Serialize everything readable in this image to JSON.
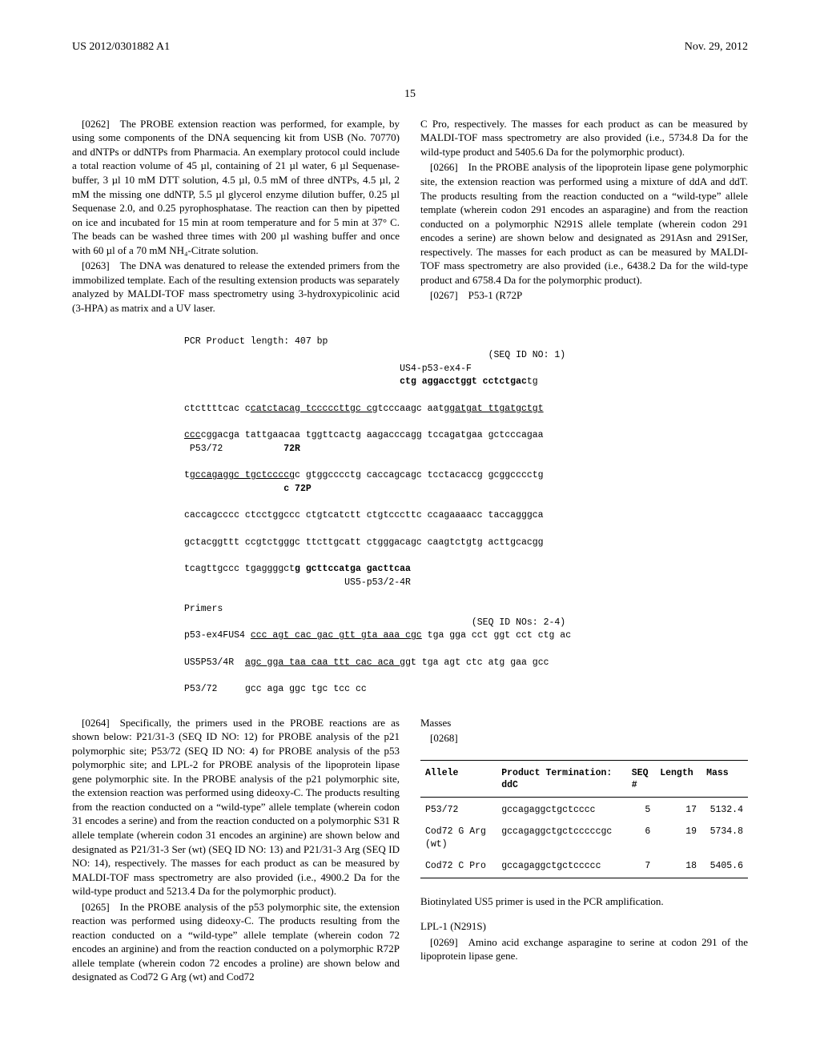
{
  "header": {
    "left": "US 2012/0301882 A1",
    "right": "Nov. 29, 2012"
  },
  "page_number": "15",
  "left_column": {
    "p0262": "[0262] The PROBE extension reaction was performed, for example, by using some components of the DNA sequencing kit from USB (No. 70770) and dNTPs or ddNTPs from Pharmacia. An exemplary protocol could include a total reaction volume of 45 µl, containing of 21 µl water, 6 µl Sequenase-buffer, 3 µl 10 mM DTT solution, 4.5 µl, 0.5 mM of three dNTPs, 4.5 µl, 2 mM the missing one ddNTP, 5.5 µl glycerol enzyme dilution buffer, 0.25 µl Sequenase 2.0, and 0.25 pyrophosphatase. The reaction can then by pipetted on ice and incubated for 15 min at room temperature and for 5 min at 37° C. The beads can be washed three times with 200 µl washing buffer and once with 60 µl of a 70 mM NH₄-Citrate solution.",
    "p0263": "[0263] The DNA was denatured to release the extended primers from the immobilized template. Each of the resulting extension products was separately analyzed by MALDI-TOF mass spectrometry using 3-hydroxypicolinic acid (3-HPA) as matrix and a UV laser.",
    "p0264": "[0264] Specifically, the primers used in the PROBE reactions are as shown below: P21/31-3 (SEQ ID NO: 12) for PROBE analysis of the p21 polymorphic site; P53/72 (SEQ ID NO: 4) for PROBE analysis of the p53 polymorphic site; and LPL-2 for PROBE analysis of the lipoprotein lipase gene polymorphic site. In the PROBE analysis of the p21 polymorphic site, the extension reaction was performed using dideoxy-C. The products resulting from the reaction conducted on a “wild-type” allele template (wherein codon 31 encodes a serine) and from the reaction conducted on a polymorphic S31 R allele template (wherein codon 31 encodes an arginine) are shown below and designated as P21/31-3 Ser (wt) (SEQ ID NO: 13) and P21/31-3 Arg (SEQ ID NO: 14), respectively. The masses for each product as can be measured by MALDI-TOF mass spectrometry are also provided (i.e., 4900.2 Da for the wild-type product and 5213.4 Da for the polymorphic product).",
    "p0265": "[0265] In the PROBE analysis of the p53 polymorphic site, the extension reaction was performed using dideoxy-C. The products resulting from the reaction conducted on a “wild-type” allele template (wherein codon 72 encodes an arginine) and from the reaction conducted on a polymorphic R72P allele template (wherein codon 72 encodes a proline) are shown below and designated as Cod72 G Arg (wt) and Cod72"
  },
  "right_column": {
    "cont_top": "C Pro, respectively. The masses for each product as can be measured by MALDI-TOF mass spectrometry are also provided (i.e., 5734.8 Da for the wild-type product and 5405.6 Da for the polymorphic product).",
    "p0266": "[0266] In the PROBE analysis of the lipoprotein lipase gene polymorphic site, the extension reaction was performed using a mixture of ddA and ddT. The products resulting from the reaction conducted on a “wild-type” allele template (wherein codon 291 encodes an asparagine) and from the reaction conducted on a polymorphic N291S allele template (wherein codon 291 encodes a serine) are shown below and designated as 291Asn and 291Ser, respectively. The masses for each product as can be measured by MALDI-TOF mass spectrometry are also provided (i.e., 6438.2 Da for the wild-type product and 6758.4 Da for the polymorphic product).",
    "p0267": "[0267] P53-1 (R72P",
    "masses_label": "Masses",
    "p0268": "[0268]",
    "biotin_note": "Biotinylated US5 primer is used in the PCR amplification.",
    "lpl_heading": "LPL-1 (N291S)",
    "p0269": "[0269] Amino acid exchange asparagine to serine at codon 291 of the lipoprotein lipase gene."
  },
  "sequence_block": {
    "title": "PCR Product length: 407 bp",
    "seq_id_1": "(SEQ ID NO: 1)",
    "us4_label": "US4-p53-ex4-F",
    "us4_seq_bold": "ctg aggacctggt cctctgac",
    "us4_tail": "tg",
    "line1_a": "ctcttttcac c",
    "line1_ul": "catctacag tcccccttgc cg",
    "line1_b": "tcccaagc aat",
    "line1_ul2": "ggatgat ttgatgctgt",
    "line2_ul": "ccc",
    "line2_b": "cggacga tattgaacaa tggttcactg aagacccagg tccagatgaa gctcccagaa",
    "p53_72_label": " P53/72",
    "label_72R": "72R",
    "line3_a": "t",
    "line3_ul": "gccagaggc tgctccccg",
    "line3_b": "c gtggcccctg caccagcagc tcctacaccg gcggcccctg",
    "label_72P": "c 72P",
    "line4": "caccagcccc ctcctggccc ctgtcatctt ctgtcccttc ccagaaaacc taccagggca",
    "line5": "gctacggttt ccgtctgggc ttcttgcatt ctgggacagc caagtctgtg acttgcacgg",
    "line6_a": "tcagttgccc tgaggggct",
    "line6_bold": "g gcttccatga gacttcaa",
    "us5_label": "US5-p53/2-4R",
    "primers_label": "Primers",
    "seq_id_24": "(SEQ ID NOs: 2-4)",
    "primer1_label": "p53-ex4FUS4",
    "primer1_ul": "ccc agt cac gac gtt gta aaa cgc",
    "primer1_rest": " tga gga cct ggt cct ctg ac",
    "primer2_label": "US5P53/4R",
    "primer2_ul": "agc gga taa caa ttt cac aca gg",
    "primer2_rest": "t tga agt ctc atg gaa gcc",
    "primer3_label": "P53/72",
    "primer3_seq": "gcc aga ggc tgc tcc cc"
  },
  "mass_table": {
    "headers": {
      "allele": "Allele",
      "product": "Product Termination:\nddC",
      "seq_num": "SEQ\n#",
      "length": "Length",
      "mass": "Mass"
    },
    "rows": [
      {
        "allele": "P53/72",
        "product": "gccagaggctgctcccc",
        "seq": "5",
        "length": "17",
        "mass": "5132.4"
      },
      {
        "allele": "Cod72 G Arg\n(wt)",
        "product": "gccagaggctgctcccccgc",
        "seq": "6",
        "length": "19",
        "mass": "5734.8"
      },
      {
        "allele": "Cod72 C Pro",
        "product": "gccagaggctgctccccc",
        "seq": "7",
        "length": "18",
        "mass": "5405.6"
      }
    ]
  }
}
